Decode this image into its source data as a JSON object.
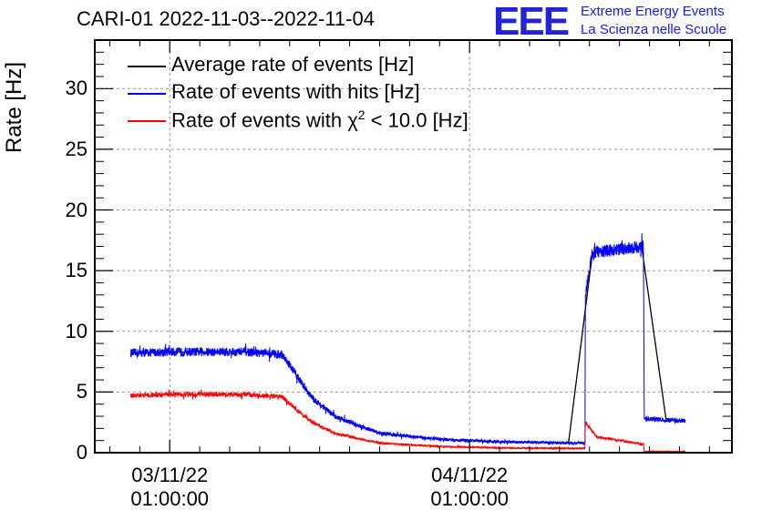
{
  "header": {
    "title": "CARI-01 2022-11-03--2022-11-04",
    "logo": "EEE",
    "logo_line1": "Extreme Energy Events",
    "logo_line2": "La Scienza nelle Scuole"
  },
  "chart_data": {
    "type": "line",
    "title": "CARI-01 2022-11-03--2022-11-04",
    "ylabel": "Rate [Hz]",
    "xlabel": "",
    "ylim": [
      0,
      34
    ],
    "xlim": [
      -5,
      37.5
    ],
    "x_unit": "hours since 03/11/22 01:00:00",
    "yticks": [
      0,
      5,
      10,
      15,
      20,
      25,
      30
    ],
    "xticks": [
      {
        "x": 0,
        "line1": "03/11/22",
        "line2": "01:00:00"
      },
      {
        "x": 20,
        "line1": "04/11/22",
        "line2": "01:00:00"
      }
    ],
    "grid": true,
    "legend_position": "top-left",
    "legend": [
      {
        "label": "Average rate of events [Hz]",
        "color": "#000000"
      },
      {
        "label": "Rate of events with hits [Hz]",
        "color": "#0000ff"
      },
      {
        "label": "Rate of events with χ² < 10.0 [Hz]",
        "color": "#ff0000",
        "label_html": "Rate of events with χ<sup>2</sup> &lt; 10.0 [Hz]"
      }
    ],
    "series": [
      {
        "name": "Average rate of events [Hz]",
        "color": "#000000",
        "x": [
          -2.6,
          0,
          5,
          7.5,
          8.5,
          9.5,
          11,
          14,
          18,
          22,
          26.6,
          28.2,
          31.5,
          33.1,
          34.4
        ],
        "y": [
          8.2,
          8.3,
          8.3,
          8.1,
          6.3,
          4.5,
          3.0,
          1.6,
          1.1,
          0.9,
          0.8,
          16.5,
          16.8,
          2.8,
          2.6
        ]
      },
      {
        "name": "Rate of events with hits [Hz]",
        "color": "#0000ff",
        "noise": 0.35,
        "x": [
          -2.6,
          0,
          5,
          7.5,
          8.5,
          9.5,
          11,
          14,
          18,
          22,
          26.5,
          27.7,
          27.72,
          28.2,
          31.6,
          31.65,
          34.4
        ],
        "y": [
          8.2,
          8.3,
          8.3,
          8.1,
          6.3,
          4.5,
          3.0,
          1.6,
          1.1,
          0.9,
          0.8,
          0.8,
          13.0,
          16.5,
          17.0,
          2.8,
          2.6
        ]
      },
      {
        "name": "Rate of events with χ² < 10.0 [Hz]",
        "color": "#ff0000",
        "noise": 0.25,
        "x": [
          -2.6,
          0,
          5,
          7.5,
          8.5,
          9.5,
          11,
          14,
          18,
          22,
          26.5,
          27.7,
          27.72,
          28.5,
          31.6,
          31.65,
          34.4
        ],
        "y": [
          4.7,
          4.8,
          4.8,
          4.6,
          3.5,
          2.5,
          1.6,
          0.8,
          0.5,
          0.4,
          0.35,
          0.35,
          2.5,
          1.3,
          0.7,
          0.1,
          0.1
        ]
      }
    ]
  }
}
